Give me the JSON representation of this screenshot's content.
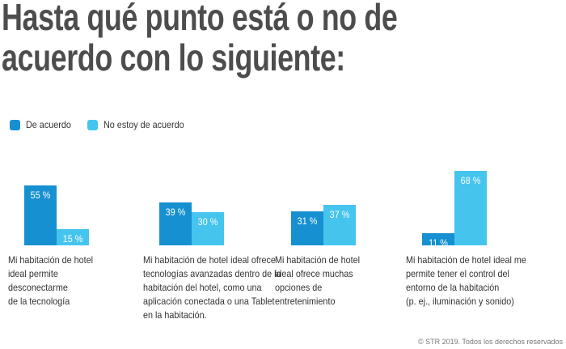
{
  "chart_data": {
    "type": "bar",
    "title": "Hasta qué punto está o no de\nacuerdo con lo siguiente:",
    "categories": [
      "Mi habitación de hotel\nideal permite\ndesconectarme\nde la tecnología",
      "Mi habitación de hotel ideal ofrece\ntecnologías avanzadas dentro de la\nhabitación del hotel, como una\naplicación conectada o una Tablet\nen la habitación.",
      "Mi habitación de hotel\nideal ofrece muchas\nopciones de\nentretenimiento",
      "Mi habitación de hotel ideal me\npermite tener el control del\nentorno de la habitación\n(p. ej., iluminación y sonido)"
    ],
    "series": [
      {
        "name": "De acuerdo",
        "color": "#1690d0",
        "values": [
          55,
          39,
          31,
          11
        ],
        "value_labels": [
          "55 %",
          "39 %",
          "31 %",
          "11 %"
        ]
      },
      {
        "name": "No estoy de acuerdo",
        "color": "#45c4ee",
        "values": [
          15,
          30,
          37,
          68
        ],
        "value_labels": [
          "15 %",
          "30 %",
          "37 %",
          "68 %"
        ]
      }
    ],
    "footer": "© STR 2019. Todos los derechos reservados"
  }
}
